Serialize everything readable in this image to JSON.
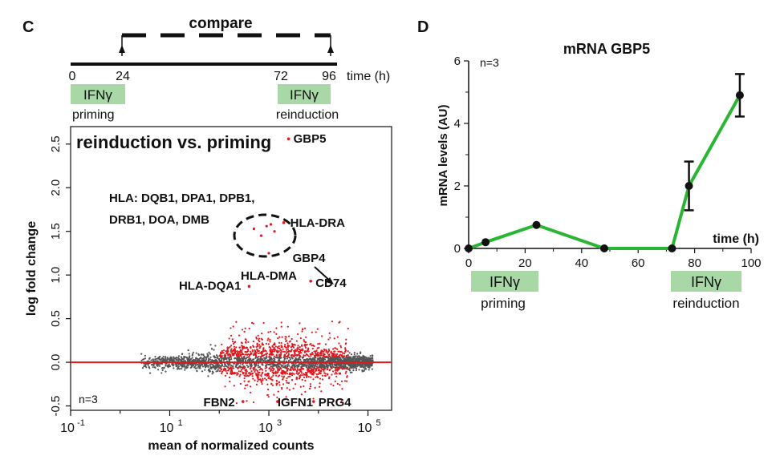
{
  "colors": {
    "red": "#e0191e",
    "grey": "#555555",
    "green": "#2ab534",
    "tag": "#a7d8a5",
    "ink": "#111111"
  },
  "panel_c": {
    "letter": "C",
    "timeline": {
      "compare_label": "compare",
      "axis_label": "time (h)",
      "ticks": [
        "0",
        "24",
        "72",
        "96"
      ],
      "tag1": "IFNγ",
      "tag1_caption": "priming",
      "tag2": "IFNγ",
      "tag2_caption": "reinduction"
    }
  },
  "panel_d": {
    "letter": "D",
    "tag1": "IFNγ",
    "tag1_caption": "priming",
    "tag2": "IFNγ",
    "tag2_caption": "reinduction"
  },
  "chart_data": [
    {
      "type": "scatter",
      "title": "reinduction vs. priming",
      "xlabel": "mean of normalized counts",
      "ylabel": "log fold change",
      "x_scale": "log10",
      "xlim": [
        0.1,
        300000
      ],
      "ylim": [
        -0.55,
        2.7
      ],
      "x_ticks": [
        {
          "base": "10",
          "exp": "-1"
        },
        {
          "base": "10",
          "exp": "1"
        },
        {
          "base": "10",
          "exp": "3"
        },
        {
          "base": "10",
          "exp": "5"
        }
      ],
      "y_ticks": [
        "-0.5",
        "0.0",
        "0.5",
        "1.0",
        "1.5",
        "2.0",
        "2.5"
      ],
      "n_label": "n=3",
      "series": [
        {
          "color": "#555555"
        },
        {
          "color": "#e0191e"
        }
      ],
      "labeled_points": [
        {
          "label": "GBP5",
          "x": 2500,
          "y": 2.56
        },
        {
          "label": "HLA-DRA",
          "x": 2000,
          "y": 1.6
        },
        {
          "label": "CD74",
          "x": 7000,
          "y": 0.93
        },
        {
          "label": "HLA-DQA1",
          "x": 400,
          "y": 0.87
        },
        {
          "label": "FBN2",
          "x": 300,
          "y": -0.45
        },
        {
          "label": "IGFN1",
          "x": 1500,
          "y": -0.45
        },
        {
          "label": "PRG4",
          "x": 8000,
          "y": -0.45
        }
      ],
      "annotations": {
        "hla_group_line1": "HLA: DQB1, DPA1, DPB1,",
        "hla_group_line2": "DRB1, DOA, DMB",
        "gbp4": "GBP4",
        "hla_dma": "HLA-DMA"
      }
    },
    {
      "type": "line",
      "title": "mRNA GBP5",
      "xlabel": "time (h)",
      "ylabel": "mRNA levels (AU)",
      "xlim": [
        0,
        100
      ],
      "ylim": [
        0,
        6
      ],
      "x_ticks": [
        "0",
        "20",
        "40",
        "60",
        "80",
        "100"
      ],
      "y_ticks": [
        "0",
        "2",
        "4",
        "6"
      ],
      "n_label": "n=3",
      "points": [
        {
          "x": 0,
          "y": 0
        },
        {
          "x": 6,
          "y": 0.2
        },
        {
          "x": 24,
          "y": 0.75
        },
        {
          "x": 48,
          "y": 0
        },
        {
          "x": 72,
          "y": 0
        },
        {
          "x": 78,
          "y": 2.0,
          "err": 0.78
        },
        {
          "x": 96,
          "y": 4.9,
          "err": 0.68
        }
      ],
      "line_color": "#2ab534"
    }
  ]
}
